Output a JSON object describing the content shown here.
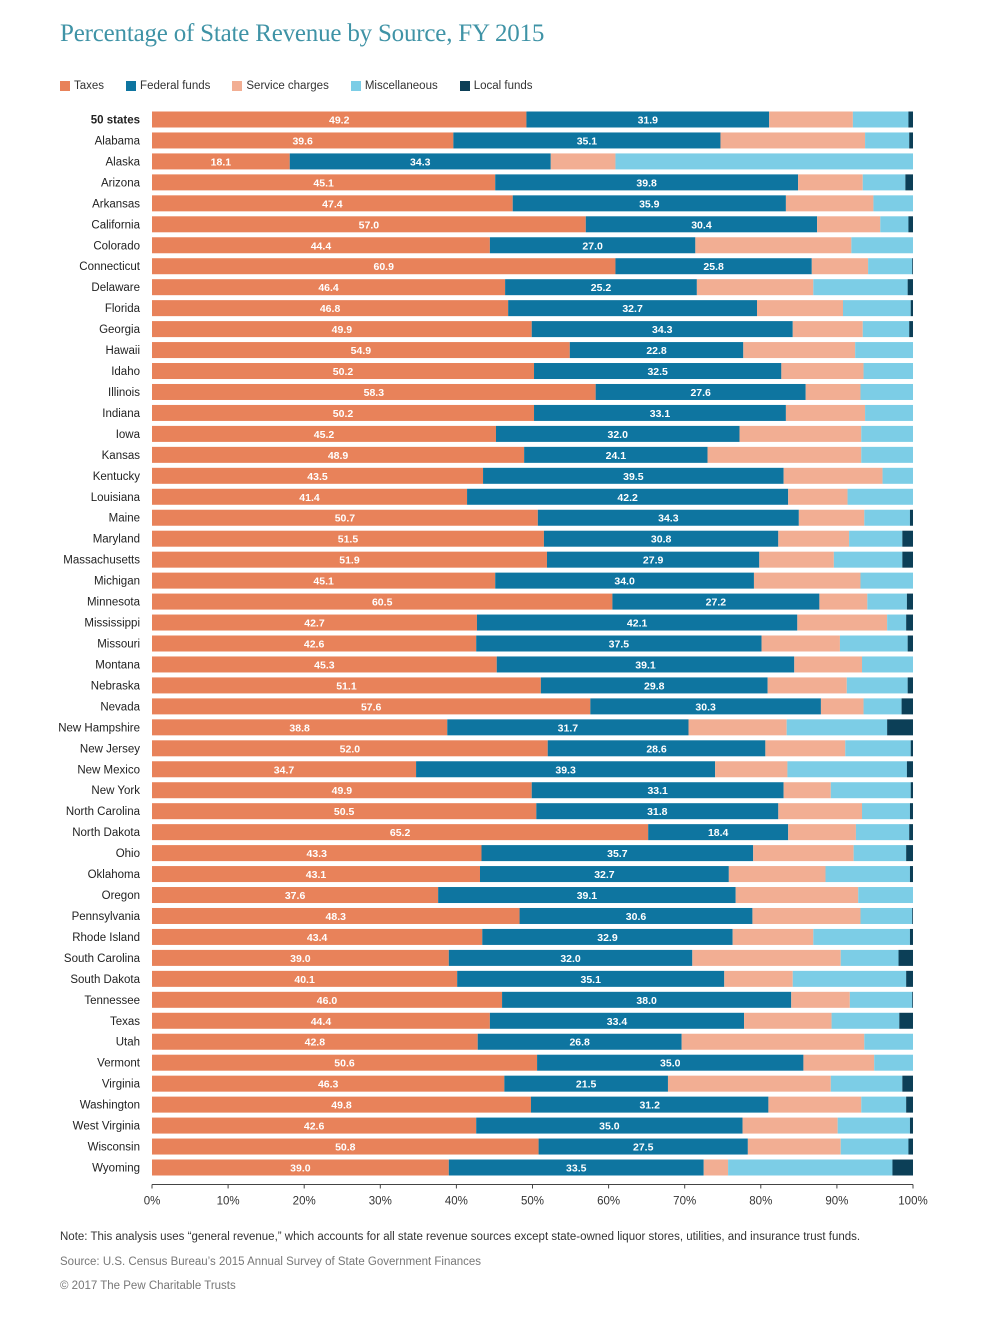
{
  "title": "Percentage of State Revenue by Source, FY 2015",
  "legend": [
    {
      "label": "Taxes",
      "color": "#e8825a"
    },
    {
      "label": "Federal funds",
      "color": "#0e75a0"
    },
    {
      "label": "Service charges",
      "color": "#f2ae93"
    },
    {
      "label": "Miscellaneous",
      "color": "#7ccde6"
    },
    {
      "label": "Local funds",
      "color": "#0c3f57"
    }
  ],
  "chart_data": {
    "type": "bar",
    "orientation": "horizontal",
    "stacked": true,
    "categories": [
      "50 states",
      "Alabama",
      "Alaska",
      "Arizona",
      "Arkansas",
      "California",
      "Colorado",
      "Connecticut",
      "Delaware",
      "Florida",
      "Georgia",
      "Hawaii",
      "Idaho",
      "Illinois",
      "Indiana",
      "Iowa",
      "Kansas",
      "Kentucky",
      "Louisiana",
      "Maine",
      "Maryland",
      "Massachusetts",
      "Michigan",
      "Minnesota",
      "Mississippi",
      "Missouri",
      "Montana",
      "Nebraska",
      "Nevada",
      "New Hampshire",
      "New Jersey",
      "New Mexico",
      "New York",
      "North Carolina",
      "North Dakota",
      "Ohio",
      "Oklahoma",
      "Oregon",
      "Pennsylvania",
      "Rhode Island",
      "South Carolina",
      "South Dakota",
      "Tennessee",
      "Texas",
      "Utah",
      "Vermont",
      "Virginia",
      "Washington",
      "West Virginia",
      "Wisconsin",
      "Wyoming"
    ],
    "bold_categories": [
      "50 states"
    ],
    "series": [
      {
        "name": "Taxes",
        "color": "#e8825a",
        "labeled": true,
        "values": [
          49.2,
          39.6,
          18.1,
          45.1,
          47.4,
          57.0,
          44.4,
          60.9,
          46.4,
          46.8,
          49.9,
          54.9,
          50.2,
          58.3,
          50.2,
          45.2,
          48.9,
          43.5,
          41.4,
          50.7,
          51.5,
          51.9,
          45.1,
          60.5,
          42.7,
          42.6,
          45.3,
          51.1,
          57.6,
          38.8,
          52.0,
          34.7,
          49.9,
          50.5,
          65.2,
          43.3,
          43.1,
          37.6,
          48.3,
          43.4,
          39.0,
          40.1,
          46.0,
          44.4,
          42.8,
          50.6,
          46.3,
          49.8,
          42.6,
          50.8,
          39.0
        ]
      },
      {
        "name": "Federal funds",
        "color": "#0e75a0",
        "labeled": true,
        "values": [
          31.9,
          35.1,
          34.3,
          39.8,
          35.9,
          30.4,
          27.0,
          25.8,
          25.2,
          32.7,
          34.3,
          22.8,
          32.5,
          27.6,
          33.1,
          32.0,
          24.1,
          39.5,
          42.2,
          34.3,
          30.8,
          27.9,
          34.0,
          27.2,
          42.1,
          37.5,
          39.1,
          29.8,
          30.3,
          31.7,
          28.6,
          39.3,
          33.1,
          31.8,
          18.4,
          35.7,
          32.7,
          39.1,
          30.6,
          32.9,
          32.0,
          35.1,
          38.0,
          33.4,
          26.8,
          35.0,
          21.5,
          31.2,
          35.0,
          27.5,
          33.5
        ]
      },
      {
        "name": "Service charges",
        "color": "#f2ae93",
        "labeled": false,
        "values": [
          11.0,
          19.0,
          8.5,
          8.5,
          11.5,
          8.3,
          20.5,
          7.4,
          15.3,
          11.3,
          9.2,
          14.7,
          10.8,
          7.2,
          10.4,
          16.0,
          20.2,
          13.0,
          7.8,
          8.6,
          9.3,
          9.8,
          14.0,
          6.3,
          11.8,
          10.3,
          8.9,
          10.4,
          5.6,
          12.9,
          10.5,
          9.5,
          6.2,
          11.0,
          8.9,
          13.2,
          12.7,
          16.1,
          14.2,
          10.6,
          19.5,
          9.0,
          7.7,
          11.5,
          24.0,
          9.3,
          21.4,
          12.2,
          12.5,
          12.2,
          3.2
        ]
      },
      {
        "name": "Miscellaneous",
        "color": "#7ccde6",
        "labeled": false,
        "values": [
          7.3,
          5.8,
          39.1,
          5.6,
          5.2,
          3.7,
          8.1,
          5.8,
          12.4,
          8.9,
          6.1,
          7.6,
          6.5,
          6.9,
          6.3,
          6.8,
          6.8,
          4.0,
          8.6,
          6.0,
          7.0,
          9.0,
          6.9,
          5.2,
          2.5,
          8.9,
          6.7,
          8.0,
          5.0,
          13.2,
          8.6,
          15.7,
          10.5,
          6.3,
          7.0,
          6.9,
          11.1,
          7.3,
          6.8,
          12.7,
          7.6,
          14.9,
          8.2,
          8.9,
          6.4,
          5.1,
          9.4,
          5.9,
          9.5,
          8.9,
          21.6
        ]
      },
      {
        "name": "Local funds",
        "color": "#0c3f57",
        "labeled": false,
        "values": [
          0.6,
          0.5,
          0.0,
          1.0,
          0.0,
          0.6,
          0.5,
          0.1,
          0.7,
          0.3,
          0.5,
          0.0,
          0.0,
          0.0,
          0.0,
          0.0,
          0.0,
          0.0,
          0.0,
          0.4,
          1.4,
          1.4,
          0.0,
          0.8,
          0.9,
          0.7,
          0.0,
          0.7,
          1.5,
          3.4,
          0.3,
          0.8,
          0.3,
          0.4,
          0.5,
          0.9,
          0.4,
          0.0,
          0.1,
          0.4,
          1.9,
          0.9,
          0.1,
          1.8,
          0.0,
          0.0,
          1.4,
          0.9,
          0.4,
          0.6,
          2.7
        ]
      }
    ],
    "x_ticks": [
      "0%",
      "10%",
      "20%",
      "30%",
      "40%",
      "50%",
      "60%",
      "70%",
      "80%",
      "90%",
      "100%"
    ],
    "xlim": [
      0,
      100
    ],
    "grid": false,
    "legend_position": "top-left"
  },
  "note": "Note: This analysis uses “general revenue,” which accounts for all state revenue sources except state-owned liquor stores, utilities, and insurance trust funds.",
  "source": "Source: U.S. Census Bureau’s 2015 Annual Survey of State Government Finances",
  "copyright": "© 2017 The Pew Charitable Trusts"
}
